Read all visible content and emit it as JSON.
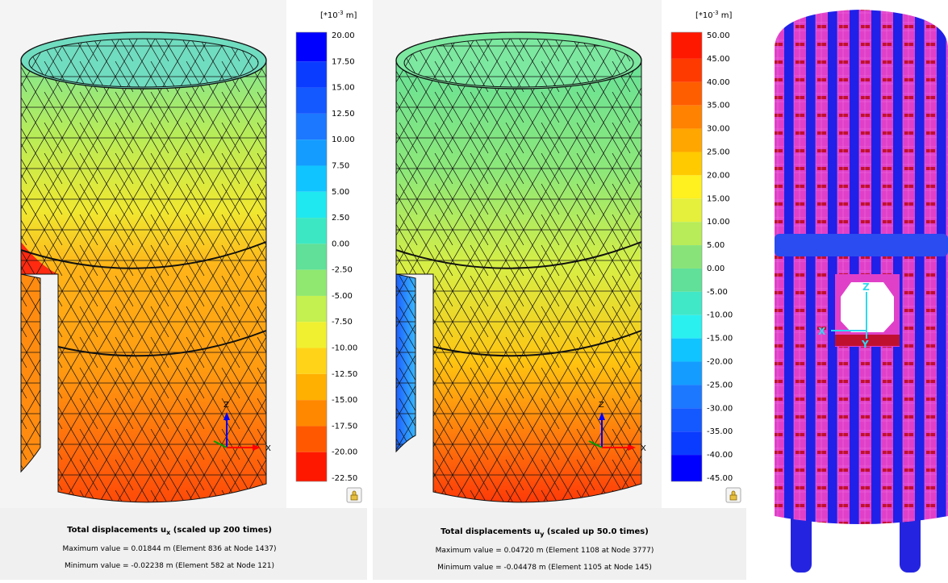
{
  "panels": [
    {
      "unit_pre": "[*10",
      "unit_exp": "-3",
      "unit_post": " m]",
      "legend_labels": [
        "20.00",
        "17.50",
        "15.00",
        "12.50",
        "10.00",
        "7.50",
        "5.00",
        "2.50",
        "0.00",
        "-2.50",
        "-5.00",
        "-7.50",
        "-10.00",
        "-12.50",
        "-15.00",
        "-17.50",
        "-20.00",
        "-22.50"
      ],
      "legend_colors": [
        "#0000ff",
        "#0a3cff",
        "#1458ff",
        "#1c78ff",
        "#149cff",
        "#10c4ff",
        "#20e8f0",
        "#3ce8c4",
        "#60e098",
        "#90e870",
        "#c4f050",
        "#f0f030",
        "#ffd418",
        "#ffb000",
        "#ff8800",
        "#ff5800",
        "#ff1800"
      ],
      "title_pre": "Total displacements u",
      "title_sub": "x",
      "title_post": " (scaled up 200 times)",
      "max_line": "Maximum value = 0.01844 m (Element 836 at Node 1437)",
      "min_line": "Minimum value = -0.02238 m (Element 582 at Node 121)",
      "axis_z": "Z",
      "axis_x": "X"
    },
    {
      "unit_pre": "[*10",
      "unit_exp": "-3",
      "unit_post": " m]",
      "legend_labels": [
        "50.00",
        "45.00",
        "40.00",
        "35.00",
        "30.00",
        "25.00",
        "20.00",
        "15.00",
        "10.00",
        "5.00",
        "0.00",
        "-5.00",
        "-10.00",
        "-15.00",
        "-20.00",
        "-25.00",
        "-30.00",
        "-35.00",
        "-40.00",
        "-45.00"
      ],
      "legend_colors": [
        "#ff1800",
        "#ff3a00",
        "#ff5e00",
        "#ff8200",
        "#ffa600",
        "#ffca00",
        "#fff020",
        "#e4f03c",
        "#b8ec58",
        "#88e478",
        "#60e098",
        "#40e8c8",
        "#2af0f0",
        "#10c4ff",
        "#149cff",
        "#1c78ff",
        "#1458ff",
        "#0a3cff",
        "#0000ff"
      ],
      "title_pre": "Total displacements u",
      "title_sub": "y",
      "title_post": " (scaled up 50.0 times)",
      "max_line": "Maximum value = 0.04720 m (Element 1108 at Node 3777)",
      "min_line": "Minimum value = -0.04478 m (Element 1105 at Node 145)",
      "axis_z": "Z",
      "axis_x": "X"
    }
  ],
  "right_view": {
    "axis_z": "Z",
    "axis_x": "X",
    "axis_y": "Y"
  }
}
